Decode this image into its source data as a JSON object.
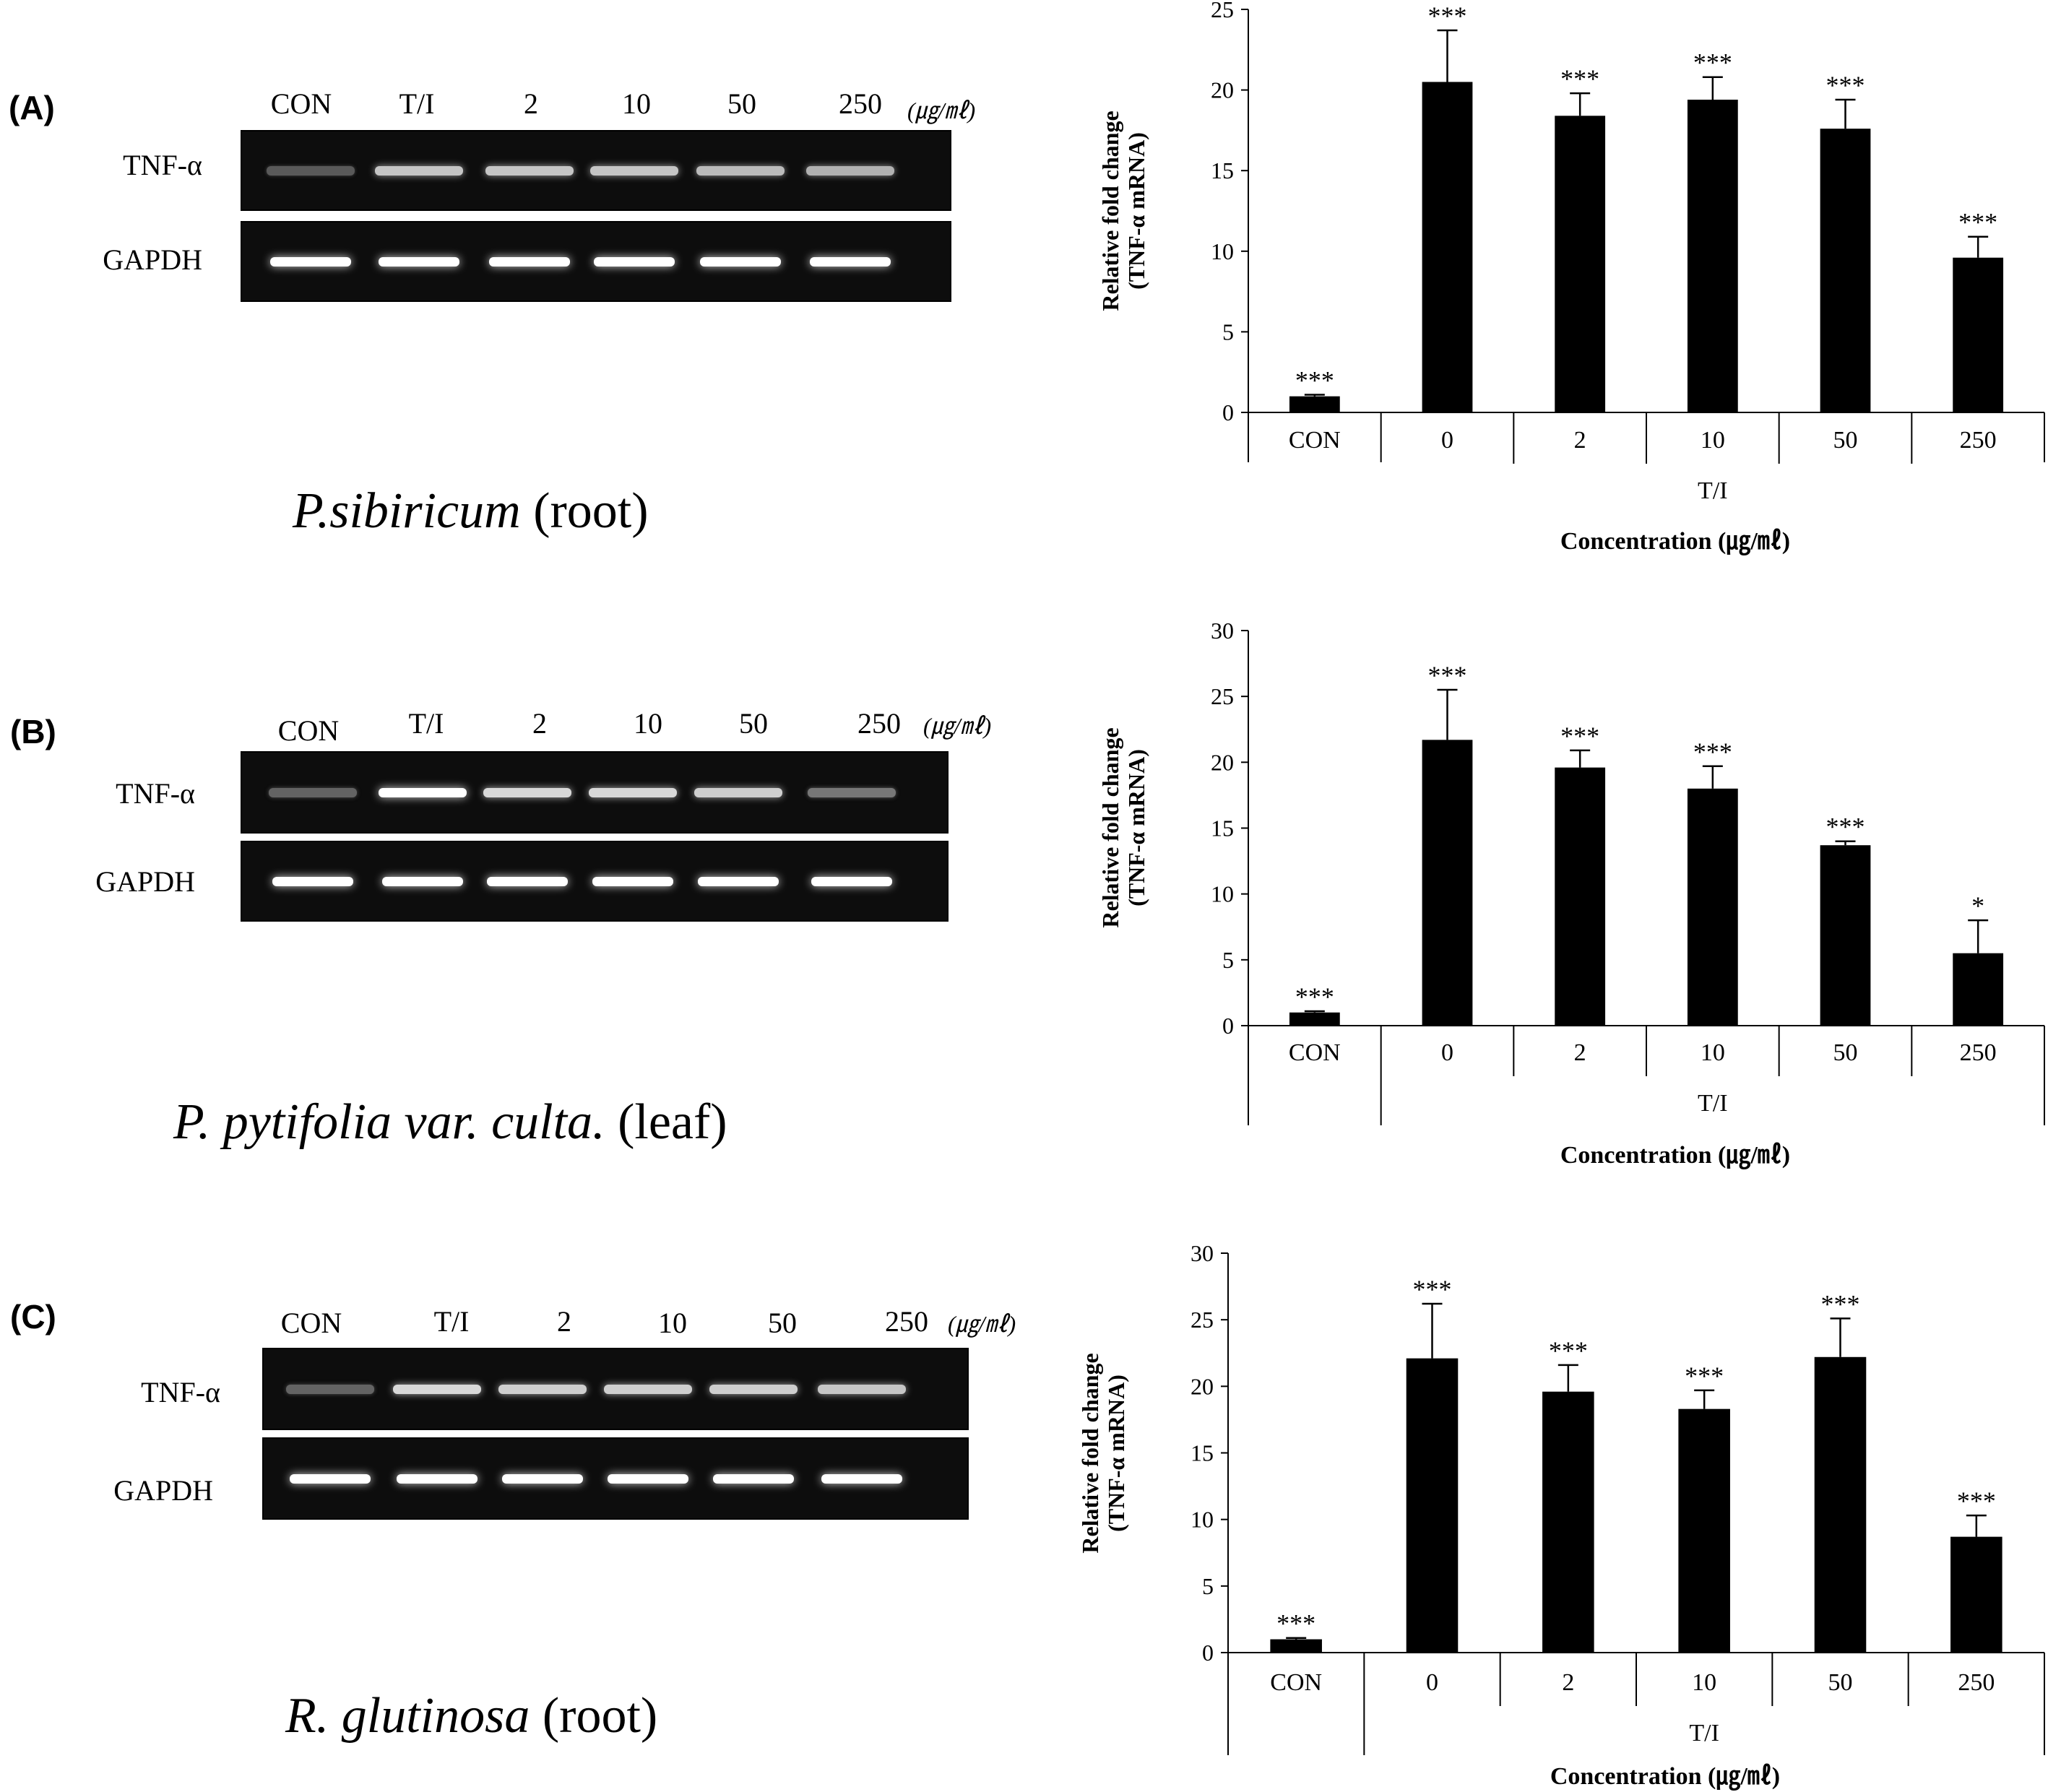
{
  "unit_label": "(㎍/㎖)",
  "panels": [
    {
      "label": "(A)",
      "lanes": [
        "CON",
        "T/I",
        "2",
        "10",
        "50",
        "250"
      ],
      "genes": [
        "TNF-α",
        "GAPDH"
      ],
      "tnf_band_intensity": [
        0.15,
        0.7,
        0.7,
        0.7,
        0.65,
        0.6
      ],
      "gapdh_band_intensity": [
        1,
        1,
        1,
        1,
        1,
        1
      ],
      "caption_species": "P.sibiricum",
      "caption_part": "(root)"
    },
    {
      "label": "(B)",
      "lanes": [
        "CON",
        "T/I",
        "2",
        "10",
        "50",
        "250"
      ],
      "genes": [
        "TNF-α",
        "GAPDH"
      ],
      "tnf_band_intensity": [
        0.2,
        1.0,
        0.8,
        0.8,
        0.75,
        0.3
      ],
      "gapdh_band_intensity": [
        1,
        1,
        1,
        1,
        1,
        1
      ],
      "caption_species": "P. pytifolia var. culta.",
      "caption_part": "(leaf)"
    },
    {
      "label": "(C)",
      "lanes": [
        "CON",
        "T/I",
        "2",
        "10",
        "50",
        "250"
      ],
      "genes": [
        "TNF-α",
        "GAPDH"
      ],
      "tnf_band_intensity": [
        0.2,
        0.8,
        0.75,
        0.75,
        0.75,
        0.7
      ],
      "gapdh_band_intensity": [
        1,
        1,
        1,
        1,
        1,
        1
      ],
      "caption_species": "R. glutinosa",
      "caption_part": "(root)"
    }
  ],
  "chart_data": [
    {
      "type": "bar",
      "title": "",
      "ylabel_line1": "Relative fold change",
      "ylabel_line2": "(TNF-α mRNA)",
      "xlabel": "Concentration (㎍/㎖)",
      "group_label": "T/I",
      "categories": [
        "CON",
        "0",
        "2",
        "10",
        "50",
        "250"
      ],
      "values": [
        1.0,
        20.5,
        18.4,
        19.4,
        17.6,
        9.6
      ],
      "errors": [
        0.1,
        3.2,
        1.4,
        1.4,
        1.8,
        1.3
      ],
      "significance": [
        "***",
        "***",
        "***",
        "***",
        "***",
        "***"
      ],
      "ylim": [
        0,
        25
      ],
      "yticks": [
        0,
        5,
        10,
        15,
        20,
        25
      ]
    },
    {
      "type": "bar",
      "title": "",
      "ylabel_line1": "Relative fold change",
      "ylabel_line2": "(TNF-α mRNA)",
      "xlabel": "Concentration (㎍/㎖)",
      "group_label": "T/I",
      "categories": [
        "CON",
        "0",
        "2",
        "10",
        "50",
        "250"
      ],
      "values": [
        1.0,
        21.7,
        19.6,
        18.0,
        13.7,
        5.5
      ],
      "errors": [
        0.1,
        3.8,
        1.3,
        1.7,
        0.3,
        2.5
      ],
      "significance": [
        "***",
        "***",
        "***",
        "***",
        "***",
        "*"
      ],
      "ylim": [
        0,
        30
      ],
      "yticks": [
        0,
        5,
        10,
        15,
        20,
        25,
        30
      ]
    },
    {
      "type": "bar",
      "title": "",
      "ylabel_line1": "Relative fold change",
      "ylabel_line2": "(TNF-α mRNA)",
      "xlabel": "Concentration (㎍/㎖)",
      "group_label": "T/I",
      "categories": [
        "CON",
        "0",
        "2",
        "10",
        "50",
        "250"
      ],
      "values": [
        1.0,
        22.1,
        19.6,
        18.3,
        22.2,
        8.7
      ],
      "errors": [
        0.1,
        4.1,
        2.0,
        1.4,
        2.9,
        1.6
      ],
      "significance": [
        "***",
        "***",
        "***",
        "***",
        "***",
        "***"
      ],
      "ylim": [
        0,
        30
      ],
      "yticks": [
        0,
        5,
        10,
        15,
        20,
        25,
        30
      ]
    }
  ]
}
